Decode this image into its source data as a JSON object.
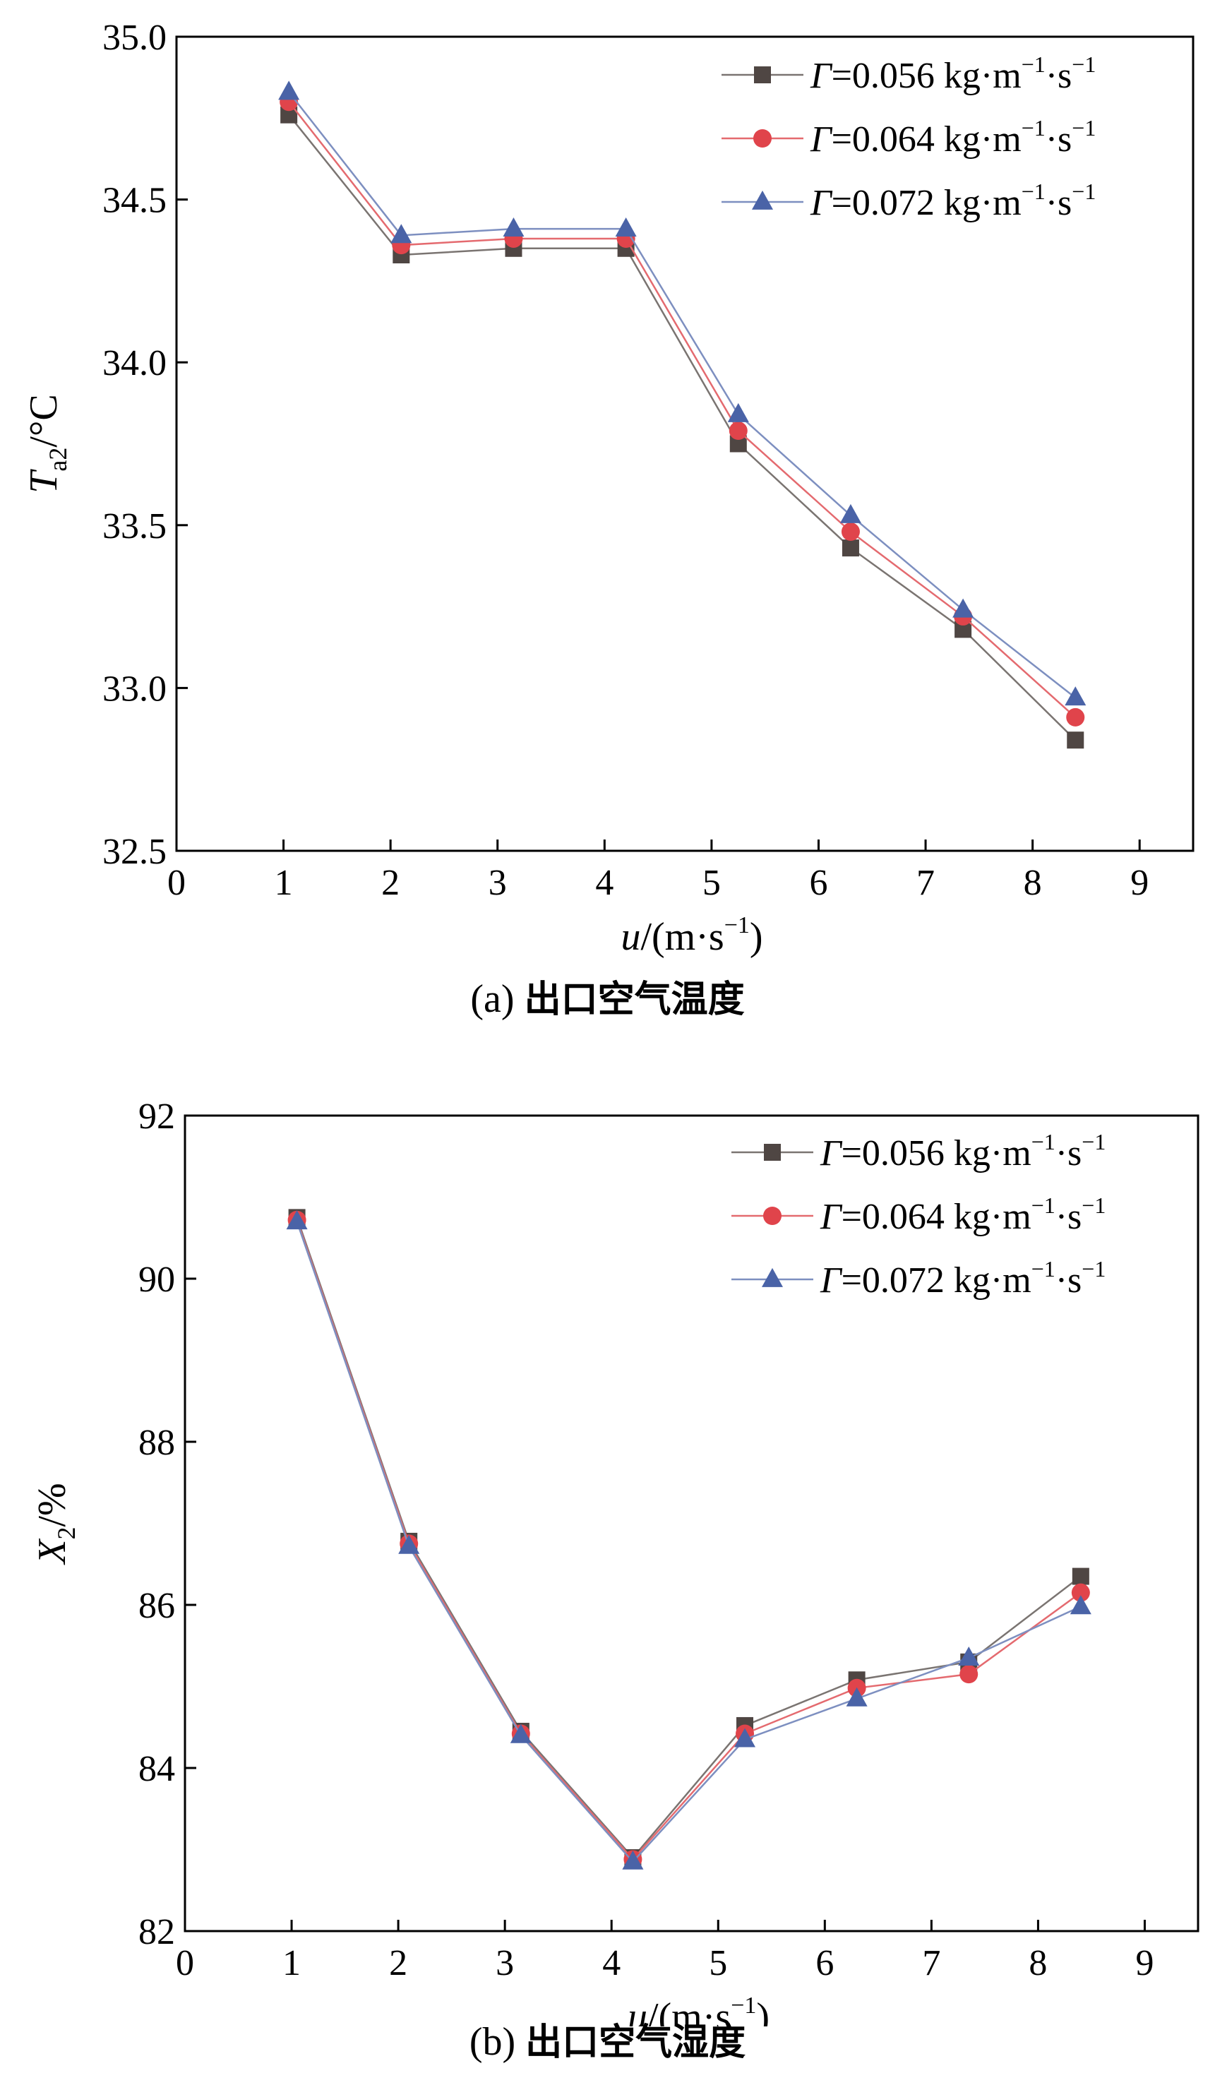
{
  "chart_data": [
    {
      "id": "a",
      "type": "line",
      "caption_label": "(a)",
      "caption_text": "出口空气温度",
      "xlabel_var": "u",
      "xlabel_unit": "/(m·s",
      "xlabel_sup": "−1",
      "xlabel_close": ")",
      "ylabel_var": "T",
      "ylabel_sub": "a2",
      "ylabel_unit": "/°C",
      "xlim": [
        0,
        9.5
      ],
      "ylim": [
        32.5,
        35.0
      ],
      "xticks": [
        0,
        1,
        2,
        3,
        4,
        5,
        6,
        7,
        8,
        9
      ],
      "yticks": [
        32.5,
        33.0,
        33.5,
        34.0,
        34.5,
        35.0
      ],
      "ytick_labels": [
        "32.5",
        "33.0",
        "33.5",
        "34.0",
        "34.5",
        "35.0"
      ],
      "x": [
        1.05,
        2.1,
        3.15,
        4.2,
        5.25,
        6.3,
        7.35,
        8.4
      ],
      "legend_position": "top-right",
      "series": [
        {
          "name": "Γ=0.056 kg·m⁻¹·s⁻¹",
          "gamma_symbol": "Γ",
          "value_text": "=0.056",
          "unit_text": "kg·m",
          "sup1": "−1",
          "unit2": "·s",
          "sup2": "−1",
          "marker": "square",
          "marker_color": "#4f4643",
          "line_color": "#7a7471",
          "values": [
            34.76,
            34.33,
            34.35,
            34.35,
            33.75,
            33.43,
            33.18,
            32.84
          ]
        },
        {
          "name": "Γ=0.064 kg·m⁻¹·s⁻¹",
          "gamma_symbol": "Γ",
          "value_text": "=0.064",
          "unit_text": "kg·m",
          "sup1": "−1",
          "unit2": "·s",
          "sup2": "−1",
          "marker": "circle",
          "marker_color": "#e0444b",
          "line_color": "#e46a6f",
          "values": [
            34.8,
            34.36,
            34.38,
            34.38,
            33.79,
            33.48,
            33.22,
            32.91
          ]
        },
        {
          "name": "Γ=0.072 kg·m⁻¹·s⁻¹",
          "gamma_symbol": "Γ",
          "value_text": "=0.072",
          "unit_text": "kg·m",
          "sup1": "−1",
          "unit2": "·s",
          "sup2": "−1",
          "marker": "triangle",
          "marker_color": "#4a63a7",
          "line_color": "#7d8fc0",
          "values": [
            34.83,
            34.39,
            34.41,
            34.41,
            33.84,
            33.53,
            33.24,
            32.97
          ]
        }
      ]
    },
    {
      "id": "b",
      "type": "line",
      "caption_label": "(b)",
      "caption_text": "出口空气湿度",
      "xlabel_var": "u",
      "xlabel_unit": "/(m·s",
      "xlabel_sup": "−1",
      "xlabel_close": ")",
      "ylabel_var": "X",
      "ylabel_sub": "2",
      "ylabel_unit": "/%",
      "xlim": [
        0,
        9.5
      ],
      "ylim": [
        82,
        92
      ],
      "xticks": [
        0,
        1,
        2,
        3,
        4,
        5,
        6,
        7,
        8,
        9
      ],
      "yticks": [
        82,
        84,
        86,
        88,
        90,
        92
      ],
      "ytick_labels": [
        "82",
        "84",
        "86",
        "88",
        "90",
        "92"
      ],
      "x": [
        1.05,
        2.1,
        3.15,
        4.2,
        5.25,
        6.3,
        7.35,
        8.4
      ],
      "legend_position": "top-right",
      "series": [
        {
          "name": "Γ=0.056 kg·m⁻¹·s⁻¹",
          "gamma_symbol": "Γ",
          "value_text": "=0.056",
          "unit_text": "kg·m",
          "sup1": "−1",
          "unit2": "·s",
          "sup2": "−1",
          "marker": "square",
          "marker_color": "#4f4643",
          "line_color": "#7a7471",
          "values": [
            90.75,
            86.78,
            84.45,
            82.9,
            84.52,
            85.08,
            85.3,
            86.35
          ]
        },
        {
          "name": "Γ=0.064 kg·m⁻¹·s⁻¹",
          "gamma_symbol": "Γ",
          "value_text": "=0.064",
          "unit_text": "kg·m",
          "sup1": "−1",
          "unit2": "·s",
          "sup2": "−1",
          "marker": "circle",
          "marker_color": "#e0444b",
          "line_color": "#e46a6f",
          "values": [
            90.72,
            86.75,
            84.42,
            82.88,
            84.42,
            84.98,
            85.15,
            86.15
          ]
        },
        {
          "name": "Γ=0.072 kg·m⁻¹·s⁻¹",
          "gamma_symbol": "Γ",
          "value_text": "=0.072",
          "unit_text": "kg·m",
          "sup1": "−1",
          "unit2": "·s",
          "sup2": "−1",
          "marker": "triangle",
          "marker_color": "#4a63a7",
          "line_color": "#7d8fc0",
          "values": [
            90.7,
            86.72,
            84.4,
            82.85,
            84.35,
            84.85,
            85.35,
            85.98
          ]
        }
      ]
    }
  ]
}
